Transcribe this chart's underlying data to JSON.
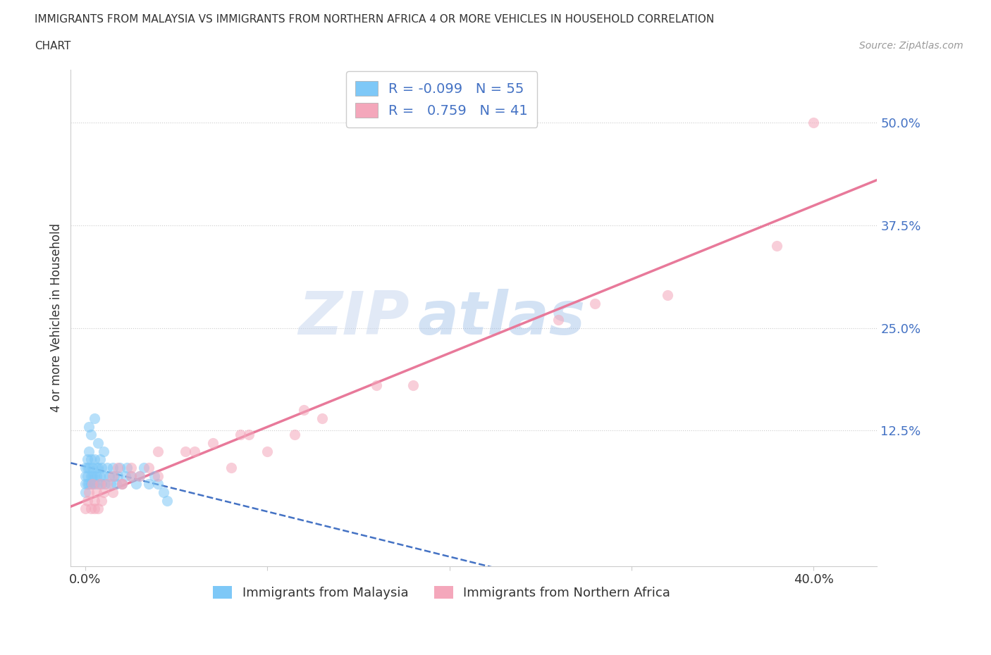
{
  "title_line1": "IMMIGRANTS FROM MALAYSIA VS IMMIGRANTS FROM NORTHERN AFRICA 4 OR MORE VEHICLES IN HOUSEHOLD CORRELATION",
  "title_line2": "CHART",
  "source_text": "Source: ZipAtlas.com",
  "ylabel": "4 or more Vehicles in Household",
  "xlim": [
    -0.008,
    0.435
  ],
  "ylim": [
    -0.04,
    0.565
  ],
  "malaysia_color": "#7ec8f7",
  "n_africa_color": "#f4a7bb",
  "malaysia_R": -0.099,
  "malaysia_N": 55,
  "n_africa_R": 0.759,
  "n_africa_N": 41,
  "legend_label_malaysia": "Immigrants from Malaysia",
  "legend_label_n_africa": "Immigrants from Northern Africa",
  "watermark_zip": "ZIP",
  "watermark_atlas": "atlas",
  "background_color": "#ffffff",
  "grid_color": "#cccccc",
  "title_color": "#333333",
  "axis_color": "#333333",
  "tick_blue": "#4472c4",
  "regression_malaysia_color": "#4472c4",
  "regression_n_africa_color": "#e8799a",
  "malaysia_scatter_x": [
    0.0,
    0.0,
    0.0,
    0.0,
    0.001,
    0.001,
    0.001,
    0.001,
    0.002,
    0.002,
    0.002,
    0.003,
    0.003,
    0.003,
    0.004,
    0.004,
    0.004,
    0.005,
    0.005,
    0.005,
    0.006,
    0.006,
    0.007,
    0.007,
    0.008,
    0.008,
    0.009,
    0.009,
    0.01,
    0.011,
    0.012,
    0.013,
    0.014,
    0.015,
    0.016,
    0.017,
    0.018,
    0.019,
    0.02,
    0.022,
    0.023,
    0.025,
    0.028,
    0.03,
    0.032,
    0.035,
    0.038,
    0.04,
    0.043,
    0.045,
    0.002,
    0.003,
    0.005,
    0.007,
    0.01
  ],
  "malaysia_scatter_y": [
    0.06,
    0.07,
    0.08,
    0.05,
    0.07,
    0.09,
    0.06,
    0.08,
    0.08,
    0.06,
    0.1,
    0.07,
    0.09,
    0.06,
    0.08,
    0.07,
    0.06,
    0.09,
    0.07,
    0.06,
    0.08,
    0.07,
    0.08,
    0.06,
    0.07,
    0.09,
    0.06,
    0.08,
    0.07,
    0.06,
    0.08,
    0.07,
    0.06,
    0.08,
    0.07,
    0.06,
    0.07,
    0.08,
    0.06,
    0.07,
    0.08,
    0.07,
    0.06,
    0.07,
    0.08,
    0.06,
    0.07,
    0.06,
    0.05,
    0.04,
    0.13,
    0.12,
    0.14,
    0.11,
    0.1
  ],
  "n_africa_scatter_x": [
    0.0,
    0.001,
    0.002,
    0.003,
    0.004,
    0.005,
    0.006,
    0.007,
    0.008,
    0.009,
    0.01,
    0.012,
    0.015,
    0.018,
    0.02,
    0.025,
    0.03,
    0.04,
    0.055,
    0.07,
    0.085,
    0.1,
    0.115,
    0.13,
    0.02,
    0.035,
    0.06,
    0.09,
    0.12,
    0.16,
    0.005,
    0.015,
    0.025,
    0.04,
    0.08,
    0.18,
    0.26,
    0.32,
    0.38,
    0.28,
    0.4
  ],
  "n_africa_scatter_y": [
    0.03,
    0.04,
    0.05,
    0.03,
    0.06,
    0.04,
    0.05,
    0.03,
    0.06,
    0.04,
    0.05,
    0.06,
    0.07,
    0.08,
    0.06,
    0.08,
    0.07,
    0.1,
    0.1,
    0.11,
    0.12,
    0.1,
    0.12,
    0.14,
    0.06,
    0.08,
    0.1,
    0.12,
    0.15,
    0.18,
    0.03,
    0.05,
    0.07,
    0.07,
    0.08,
    0.18,
    0.26,
    0.29,
    0.35,
    0.28,
    0.5
  ],
  "x_tick_positions": [
    0.0,
    0.1,
    0.2,
    0.3,
    0.4
  ],
  "x_tick_labels": [
    "0.0%",
    "",
    "",
    "",
    "40.0%"
  ],
  "y_tick_positions": [
    0.0,
    0.125,
    0.25,
    0.375,
    0.5
  ],
  "y_tick_labels": [
    "",
    "12.5%",
    "25.0%",
    "37.5%",
    "50.0%"
  ]
}
